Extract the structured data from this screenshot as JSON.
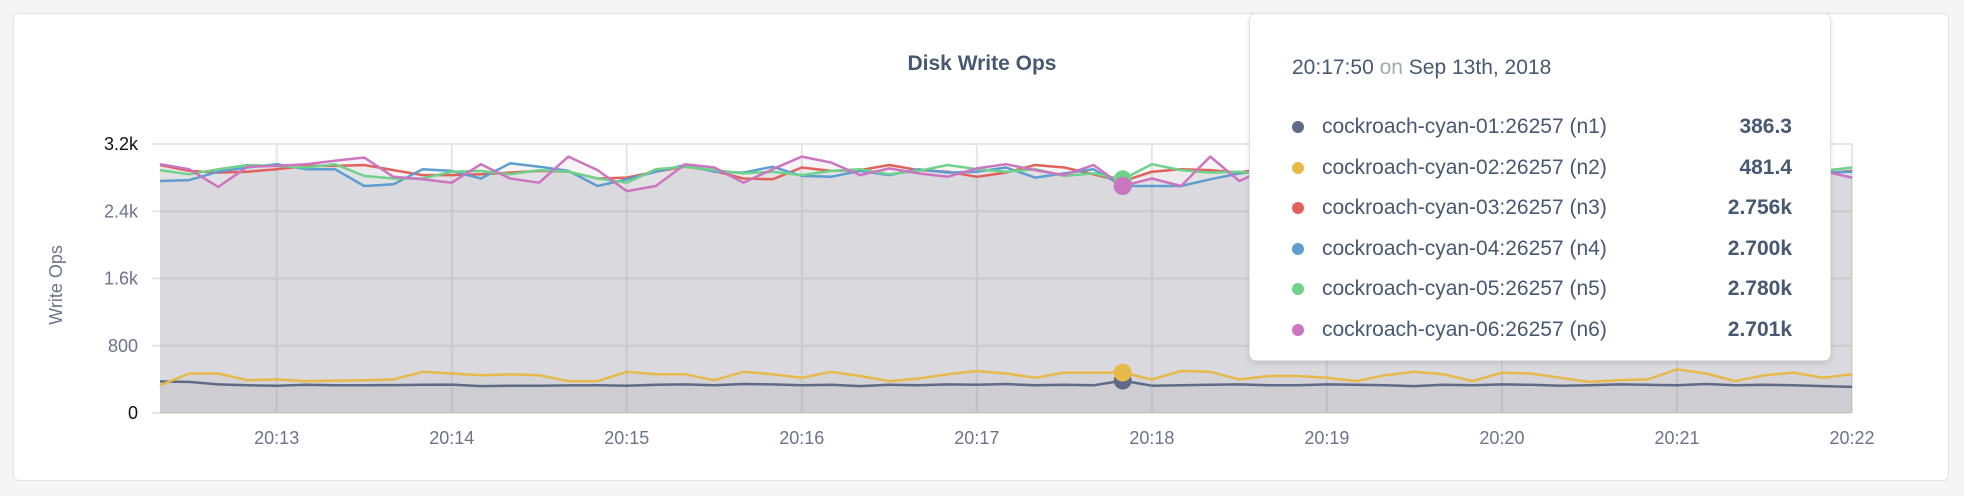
{
  "chart_data": {
    "type": "area",
    "title": "Disk Write Ops",
    "ylabel": "Write Ops",
    "xlabel": "",
    "ylim": [
      0,
      3200
    ],
    "yticks": [
      "0",
      "800",
      "1.6k",
      "2.4k",
      "3.2k"
    ],
    "ytick_values": [
      0,
      800,
      1600,
      2400,
      3200
    ],
    "xlim": [
      "20:12:20",
      "20:22:00"
    ],
    "xticks": [
      "20:13",
      "20:14",
      "20:15",
      "20:16",
      "20:17",
      "20:18",
      "20:19",
      "20:20",
      "20:21",
      "20:22"
    ],
    "grid": true,
    "x": [
      "20:12:20",
      "20:12:30",
      "20:12:40",
      "20:12:50",
      "20:13:00",
      "20:13:10",
      "20:13:20",
      "20:13:30",
      "20:13:40",
      "20:13:50",
      "20:14:00",
      "20:14:10",
      "20:14:20",
      "20:14:30",
      "20:14:40",
      "20:14:50",
      "20:15:00",
      "20:15:10",
      "20:15:20",
      "20:15:30",
      "20:15:40",
      "20:15:50",
      "20:16:00",
      "20:16:10",
      "20:16:20",
      "20:16:30",
      "20:16:40",
      "20:16:50",
      "20:17:00",
      "20:17:10",
      "20:17:20",
      "20:17:30",
      "20:17:40",
      "20:17:50",
      "20:18:00",
      "20:18:10",
      "20:18:20",
      "20:18:30",
      "20:18:40",
      "20:18:50",
      "20:19:00",
      "20:19:10",
      "20:19:20",
      "20:19:30",
      "20:19:40",
      "20:19:50",
      "20:20:00",
      "20:20:10",
      "20:20:20",
      "20:20:30",
      "20:20:40",
      "20:20:50",
      "20:21:00",
      "20:21:10",
      "20:21:20",
      "20:21:30",
      "20:21:40",
      "20:21:50",
      "20:22:00"
    ],
    "series": [
      {
        "name": "cockroach-cyan-01:26257 (n1)",
        "color": "#5f6b86",
        "values": [
          375,
          370,
          340,
          330,
          325,
          335,
          330,
          330,
          332,
          335,
          338,
          320,
          325,
          325,
          328,
          330,
          325,
          335,
          340,
          330,
          345,
          340,
          330,
          335,
          320,
          335,
          330,
          340,
          335,
          345,
          330,
          335,
          330,
          386,
          325,
          330,
          335,
          340,
          330,
          330,
          340,
          335,
          330,
          320,
          335,
          330,
          340,
          335,
          325,
          330,
          340,
          335,
          330,
          345,
          330,
          335,
          330,
          320,
          310
        ]
      },
      {
        "name": "cockroach-cyan-02:26257 (n2)",
        "color": "#e6b94a",
        "values": [
          330,
          470,
          470,
          390,
          400,
          380,
          385,
          390,
          400,
          490,
          470,
          450,
          460,
          450,
          380,
          380,
          490,
          460,
          460,
          390,
          490,
          460,
          420,
          490,
          440,
          380,
          410,
          460,
          500,
          470,
          420,
          480,
          480,
          481,
          400,
          500,
          490,
          400,
          440,
          440,
          420,
          380,
          450,
          490,
          460,
          380,
          480,
          470,
          420,
          370,
          390,
          400,
          520,
          470,
          380,
          450,
          480,
          420,
          460
        ]
      },
      {
        "name": "cockroach-cyan-03:26257 (n3)",
        "color": "#e0625b",
        "values": [
          2950,
          2880,
          2860,
          2870,
          2900,
          2940,
          2940,
          2950,
          2890,
          2830,
          2830,
          2840,
          2860,
          2880,
          2870,
          2790,
          2800,
          2870,
          2930,
          2880,
          2790,
          2780,
          2920,
          2880,
          2890,
          2950,
          2890,
          2870,
          2810,
          2860,
          2950,
          2920,
          2840,
          2756,
          2870,
          2900,
          2890,
          2860,
          2920,
          2870,
          2880,
          2850,
          2900,
          2860,
          2880,
          2830,
          2870,
          2900,
          2860,
          2840,
          2880,
          2850,
          2900,
          2870,
          2830,
          2860,
          2880,
          2850,
          2880
        ]
      },
      {
        "name": "cockroach-cyan-04:26257 (n4)",
        "color": "#5e9dcf",
        "values": [
          2760,
          2770,
          2870,
          2920,
          2960,
          2900,
          2900,
          2700,
          2720,
          2900,
          2880,
          2790,
          2970,
          2930,
          2880,
          2700,
          2780,
          2870,
          2950,
          2870,
          2860,
          2930,
          2820,
          2810,
          2880,
          2830,
          2900,
          2860,
          2870,
          2920,
          2800,
          2850,
          2900,
          2700,
          2700,
          2700,
          2780,
          2850,
          2880,
          2860,
          2900,
          2820,
          2760,
          2860,
          2880,
          2840,
          2900,
          2870,
          2830,
          2860,
          2880,
          2840,
          2900,
          2870,
          2840,
          2880,
          2850,
          2860,
          2870
        ]
      },
      {
        "name": "cockroach-cyan-05:26257 (n5)",
        "color": "#6fd28b",
        "values": [
          2890,
          2840,
          2900,
          2950,
          2940,
          2920,
          2960,
          2820,
          2790,
          2790,
          2870,
          2880,
          2840,
          2890,
          2870,
          2790,
          2740,
          2900,
          2930,
          2890,
          2850,
          2870,
          2830,
          2880,
          2900,
          2840,
          2880,
          2950,
          2900,
          2870,
          2900,
          2820,
          2850,
          2780,
          2960,
          2890,
          2860,
          2870,
          2830,
          2870,
          3010,
          2870,
          2900,
          2860,
          2830,
          2880,
          2850,
          2900,
          2870,
          2860,
          2890,
          2860,
          2880,
          2840,
          2900,
          2860,
          2870,
          2880,
          2920
        ]
      },
      {
        "name": "cockroach-cyan-06:26257 (n6)",
        "color": "#cc75c0",
        "values": [
          2960,
          2900,
          2690,
          2930,
          2940,
          2960,
          3000,
          3040,
          2810,
          2780,
          2740,
          2960,
          2790,
          2740,
          3050,
          2890,
          2640,
          2700,
          2960,
          2920,
          2740,
          2900,
          3050,
          2980,
          2830,
          2910,
          2850,
          2810,
          2910,
          2960,
          2890,
          2830,
          2950,
          2701,
          2790,
          2700,
          3050,
          2760,
          2920,
          2880,
          2800,
          2880,
          2850,
          2900,
          2830,
          2870,
          2880,
          2840,
          2900,
          2860,
          2850,
          2880,
          2840,
          2900,
          2870,
          2860,
          2850,
          2880,
          2800
        ]
      }
    ],
    "hover": {
      "time": "20:17:50",
      "on": "on",
      "date": "Sep 13th, 2018",
      "values": [
        "386.3",
        "481.4",
        "2.756k",
        "2.700k",
        "2.780k",
        "2.701k"
      ]
    }
  }
}
